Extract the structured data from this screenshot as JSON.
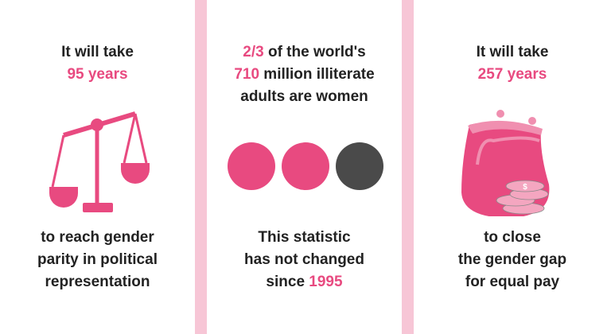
{
  "colors": {
    "accent": "#e84a80",
    "divider": "#f7c6d6",
    "dark": "#4a4a4a"
  },
  "panels": [
    {
      "top_line1": "It will take",
      "top_highlight": "95 years",
      "icon": "scales-icon",
      "bottom_line1": "to reach gender",
      "bottom_line2": "parity in political",
      "bottom_line3": "representation"
    },
    {
      "top_highlight1": "2/3",
      "top_line1_rest": " of the world's",
      "top_highlight2": "710",
      "top_line2_rest": " million illiterate",
      "top_line3": "adults are women",
      "icon": "three-circles-icon",
      "bottom_line1": "This statistic",
      "bottom_line2": "has not changed",
      "bottom_line3_prefix": "since ",
      "bottom_highlight": "1995"
    },
    {
      "top_line1": "It will take",
      "top_highlight": "257 years",
      "icon": "coin-purse-icon",
      "bottom_line1": "to close",
      "bottom_line2": "the gender gap",
      "bottom_line3": "for equal pay"
    }
  ]
}
